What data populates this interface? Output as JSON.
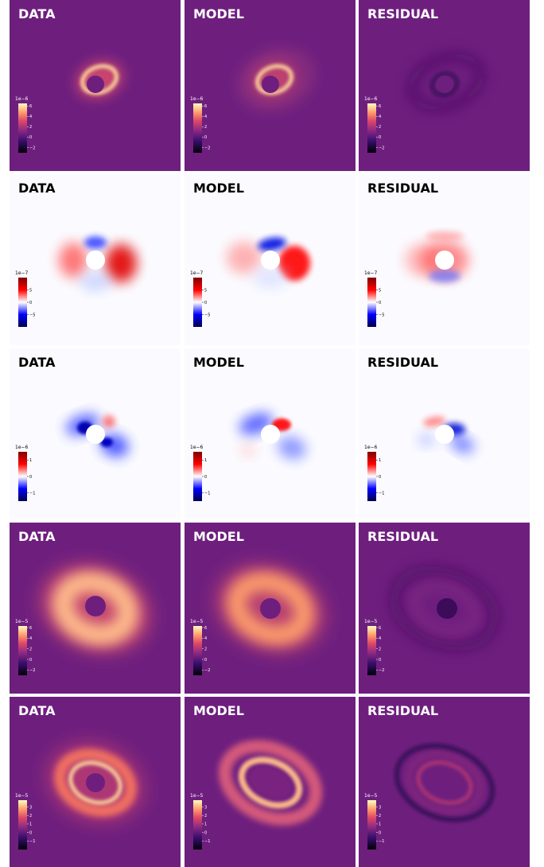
{
  "rows": [
    {
      "colormap": "magma",
      "panels": [
        {
          "title": "DATA"
        },
        {
          "title": "MODEL"
        },
        {
          "title": "RESIDUAL"
        }
      ],
      "colorbar": {
        "exponent": "1e−6",
        "clim": [
          -3,
          6.5
        ],
        "ticks": [
          6,
          4,
          2,
          0,
          {
            "value": -2,
            "label": "−2"
          }
        ]
      }
    },
    {
      "colormap": "seismic",
      "panels": [
        {
          "title": "DATA"
        },
        {
          "title": "MODEL"
        },
        {
          "title": "RESIDUAL"
        }
      ],
      "colorbar": {
        "exponent": "1e−7",
        "clim": [
          -10,
          10
        ],
        "ticks": [
          5,
          0,
          {
            "value": -5,
            "label": "−5"
          }
        ]
      }
    },
    {
      "colormap": "seismic",
      "panels": [
        {
          "title": "DATA"
        },
        {
          "title": "MODEL"
        },
        {
          "title": "RESIDUAL"
        }
      ],
      "colorbar": {
        "exponent": "1e−6",
        "clim": [
          -1.5,
          1.5
        ],
        "ticks": [
          1,
          0,
          {
            "value": -1,
            "label": "−1"
          }
        ]
      }
    },
    {
      "colormap": "magma",
      "panels": [
        {
          "title": "DATA"
        },
        {
          "title": "MODEL"
        },
        {
          "title": "RESIDUAL"
        }
      ],
      "colorbar": {
        "exponent": "1e−5",
        "clim": [
          -3,
          6.3
        ],
        "ticks": [
          6,
          4,
          2,
          0,
          {
            "value": -2,
            "label": "−2"
          }
        ]
      }
    },
    {
      "colormap": "magma",
      "panels": [
        {
          "title": "DATA"
        },
        {
          "title": "MODEL"
        },
        {
          "title": "RESIDUAL"
        }
      ],
      "colorbar": {
        "exponent": "1e−5",
        "clim": [
          -2,
          3.8
        ],
        "ticks": [
          3,
          2,
          1,
          0,
          {
            "value": -1,
            "label": "−1"
          }
        ]
      }
    }
  ]
}
